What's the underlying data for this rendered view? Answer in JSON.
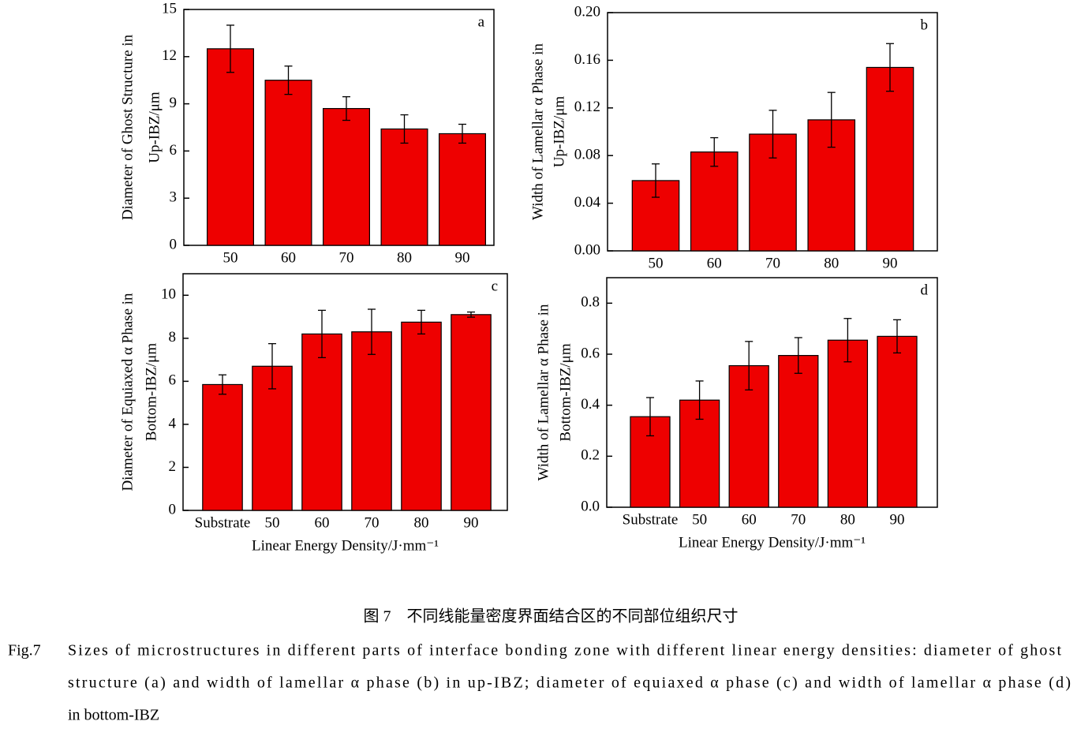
{
  "chart_data": [
    {
      "type": "bar",
      "panel_label": "a",
      "ylabel": [
        "Diameter of Ghost Structure in",
        "Up-IBZ/μm"
      ],
      "categories": [
        "50",
        "60",
        "70",
        "80",
        "90"
      ],
      "series": [
        {
          "color": "#ee0000",
          "values": [
            12.5,
            10.5,
            8.7,
            7.4,
            7.1
          ],
          "errors": [
            1.5,
            0.9,
            0.75,
            0.9,
            0.6
          ]
        }
      ],
      "ylim": [
        0,
        15
      ],
      "yticks": [
        0,
        3,
        6,
        9,
        12,
        15
      ]
    },
    {
      "type": "bar",
      "panel_label": "b",
      "ylabel": [
        "Width of Lamellar α Phase in",
        "Up-IBZ/μm"
      ],
      "categories": [
        "50",
        "60",
        "70",
        "80",
        "90"
      ],
      "series": [
        {
          "color": "#ee0000",
          "values": [
            0.059,
            0.083,
            0.098,
            0.11,
            0.154
          ],
          "errors": [
            0.014,
            0.012,
            0.02,
            0.023,
            0.02
          ]
        }
      ],
      "ylim": [
        0,
        0.2
      ],
      "yticks": [
        {
          "value": 0,
          "label": "0.00"
        },
        {
          "value": 0.04,
          "label": "0.04"
        },
        {
          "value": 0.08,
          "label": "0.08"
        },
        {
          "value": 0.12,
          "label": "0.12"
        },
        {
          "value": 0.16,
          "label": "0.16"
        },
        {
          "value": 0.2,
          "label": "0.20"
        }
      ]
    },
    {
      "type": "bar",
      "panel_label": "c",
      "ylabel": [
        "Diameter of Equiaxed α Phase in",
        "Bottom-IBZ/μm"
      ],
      "xlabel": "Linear Energy Density/J·mm⁻¹",
      "categories": [
        "Substrate",
        "50",
        "60",
        "70",
        "80",
        "90"
      ],
      "series": [
        {
          "color": "#ee0000",
          "values": [
            5.85,
            6.7,
            8.2,
            8.3,
            8.75,
            9.1
          ],
          "errors": [
            0.45,
            1.05,
            1.1,
            1.05,
            0.55,
            0.12
          ]
        }
      ],
      "ylim": [
        0,
        11
      ],
      "yticks": [
        0,
        2,
        4,
        6,
        8,
        10
      ]
    },
    {
      "type": "bar",
      "panel_label": "d",
      "ylabel": [
        "Width of Lamellar α Phase in",
        "Bottom-IBZ/μm"
      ],
      "xlabel": "Linear Energy Density/J·mm⁻¹",
      "categories": [
        "Substrate",
        "50",
        "60",
        "70",
        "80",
        "90"
      ],
      "series": [
        {
          "color": "#ee0000",
          "values": [
            0.355,
            0.42,
            0.555,
            0.595,
            0.655,
            0.67
          ],
          "errors": [
            0.075,
            0.075,
            0.095,
            0.07,
            0.085,
            0.065
          ]
        }
      ],
      "ylim": [
        0,
        0.9
      ],
      "yticks": [
        {
          "value": 0,
          "label": "0.0"
        },
        {
          "value": 0.2,
          "label": "0.2"
        },
        {
          "value": 0.4,
          "label": "0.4"
        },
        {
          "value": 0.6,
          "label": "0.6"
        },
        {
          "value": 0.8,
          "label": "0.8"
        }
      ]
    }
  ],
  "caption": {
    "cn": "图 7　不同线能量密度界面结合区的不同部位组织尺寸",
    "label": "Fig.7",
    "lines": [
      "Sizes of microstructures in different parts of interface bonding zone with different linear energy densities: diameter of ghost",
      "structure (a) and width of lamellar α phase (b) in up-IBZ; diameter of equiaxed α phase (c) and width of lamellar α phase (d)",
      "in bottom-IBZ"
    ]
  }
}
